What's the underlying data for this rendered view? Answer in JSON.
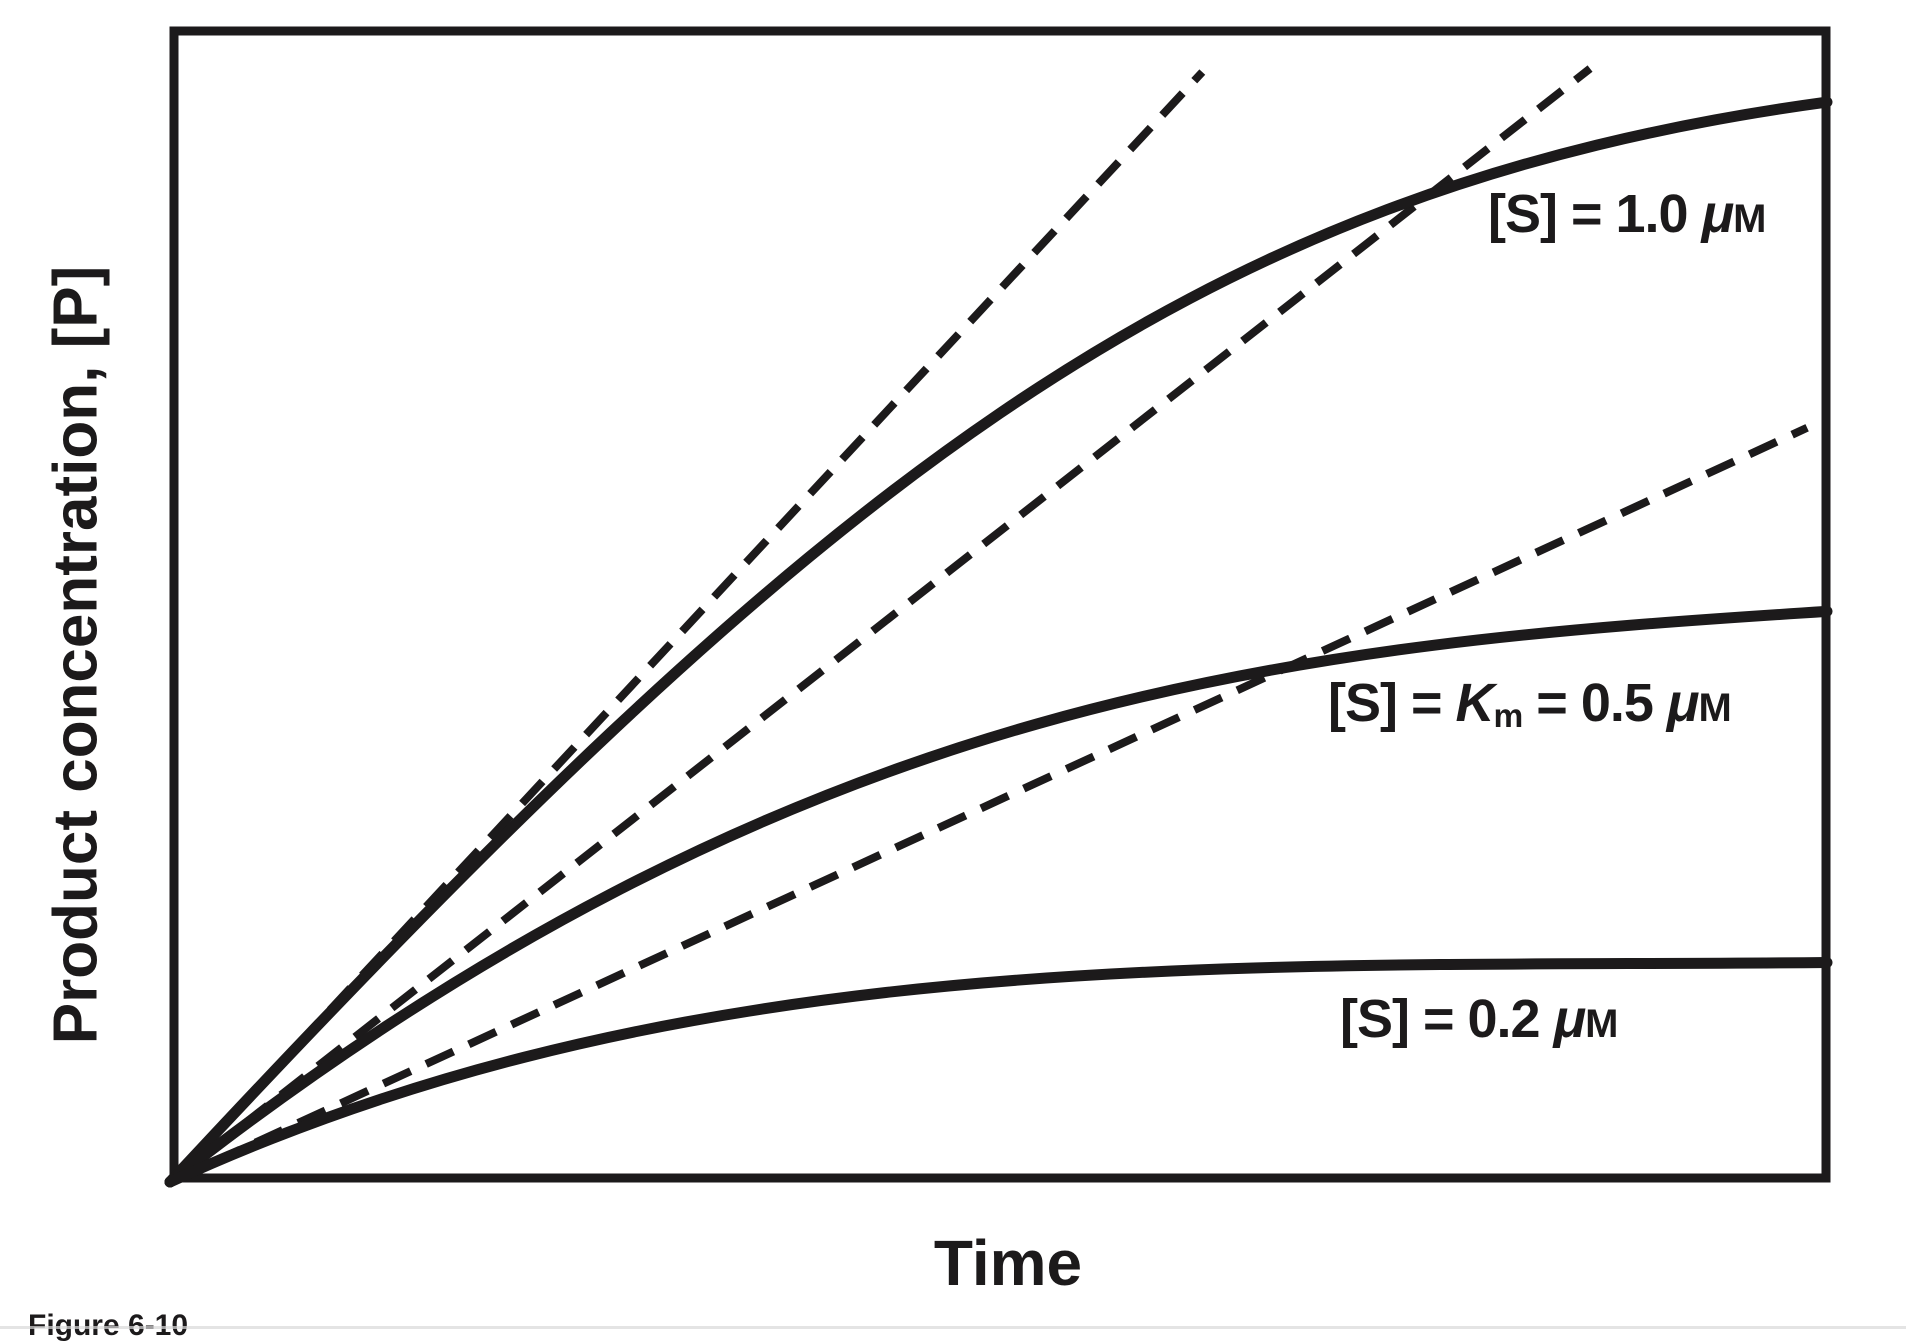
{
  "figure": {
    "caption": "Figure 6-10"
  },
  "axes": {
    "x_label": "Time",
    "y_label": "Product concentration, [P]"
  },
  "curve_labels": {
    "s10": {
      "prefix": "[S] = 1.0 ",
      "mu": "μ",
      "unit": "M"
    },
    "s05": {
      "prefix": "[S] = ",
      "k": "K",
      "k_sub": "m",
      "mid": " = 0.5 ",
      "mu": "μ",
      "unit": "M"
    },
    "s02": {
      "prefix": "[S] = 0.2 ",
      "mu": "μ",
      "unit": "M"
    }
  },
  "colors": {
    "ink": "#1c1a1b",
    "background": "#ffffff"
  },
  "chart_data": {
    "type": "line",
    "title": "",
    "xlabel": "Time",
    "ylabel": "Product concentration, [P]",
    "x_tick_labels": [],
    "y_tick_labels": [],
    "grid": false,
    "legend": "inline-labels",
    "axis_note": "Axes carry no numeric scale; coordinates below are fractions of the axis spans.",
    "series": [
      {
        "name": "[S] = 1.0 μM",
        "style": "solid",
        "points_frac": [
          [
            0,
            0
          ],
          [
            0.11,
            0.17
          ],
          [
            0.22,
            0.32
          ],
          [
            0.31,
            0.45
          ],
          [
            0.41,
            0.57
          ],
          [
            0.5,
            0.67
          ],
          [
            0.59,
            0.75
          ],
          [
            0.69,
            0.81
          ],
          [
            0.78,
            0.87
          ],
          [
            0.89,
            0.91
          ],
          [
            1.0,
            0.94
          ]
        ],
        "bezier_frac": [
          [
            0.392,
            0.604
          ],
          [
            0.61,
            0.859
          ],
          [
            1.0,
            0.935
          ]
        ]
      },
      {
        "name": "[S] = Km = 0.5 μM",
        "style": "solid",
        "points_frac": [
          [
            0,
            0
          ],
          [
            0.22,
            0.21
          ],
          [
            0.42,
            0.35
          ],
          [
            0.62,
            0.43
          ],
          [
            0.81,
            0.47
          ],
          [
            1.0,
            0.49
          ]
        ],
        "bezier_frac": [
          [
            0.38,
            0.428
          ],
          [
            0.682,
            0.465
          ],
          [
            1.0,
            0.494
          ]
        ]
      },
      {
        "name": "[S] = 0.2 μM",
        "style": "solid",
        "points_frac": [
          [
            0,
            0
          ],
          [
            0.19,
            0.1
          ],
          [
            0.49,
            0.17
          ],
          [
            0.79,
            0.19
          ],
          [
            1.0,
            0.19
          ]
        ],
        "bezier_frac": [
          [
            0.32,
            0.211
          ],
          [
            0.652,
            0.185
          ],
          [
            1.0,
            0.19
          ]
        ]
      }
    ],
    "initial_rate_tangents": [
      {
        "for": "[S] = 1.0 μM",
        "style": "dashed",
        "from_frac": [
          0,
          0
        ],
        "to_frac": [
          0.623,
          0.961
        ]
      },
      {
        "for": "[S] = Km = 0.5 μM",
        "style": "dashed",
        "from_frac": [
          0,
          0
        ],
        "to_frac": [
          0.857,
          0.964
        ]
      },
      {
        "for": "[S] = 0.2 μM",
        "style": "dashed",
        "from_frac": [
          0,
          0
        ],
        "to_frac": [
          0.988,
          0.653
        ]
      }
    ]
  }
}
